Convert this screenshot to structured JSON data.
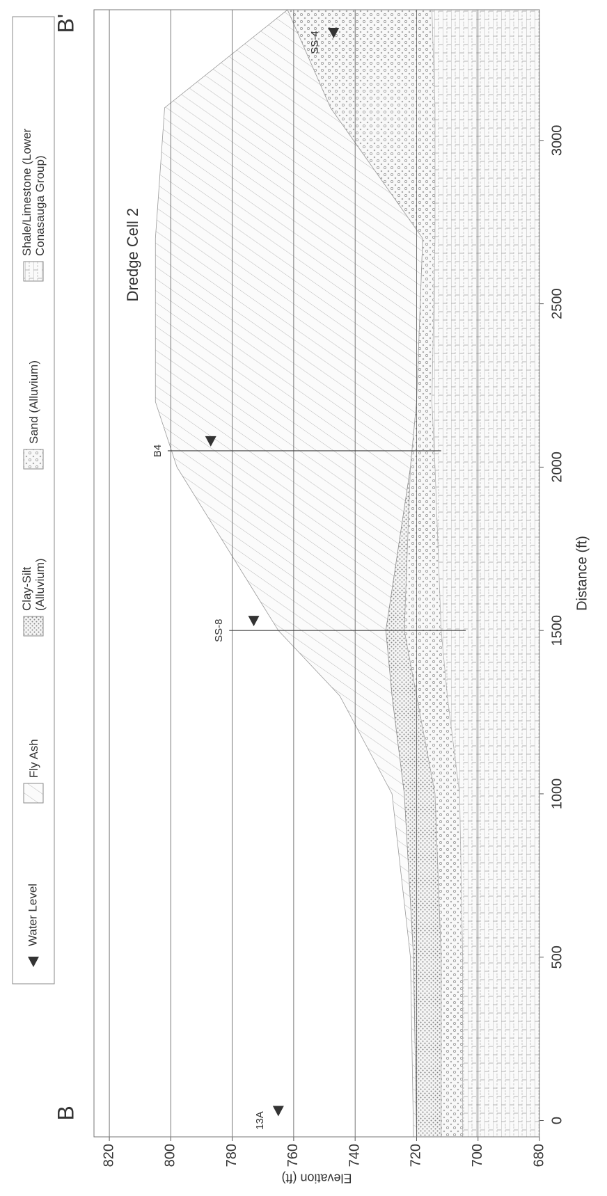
{
  "chart_data": {
    "type": "cross-section",
    "xlabel": "Distance (ft)",
    "ylabel": "Elevation (ft)",
    "xlim": [
      -50,
      3400
    ],
    "xticks": [
      0,
      500,
      1000,
      1500,
      2000,
      2500,
      3000
    ],
    "ylim": [
      680,
      825
    ],
    "yticks": [
      680,
      700,
      720,
      740,
      760,
      780,
      800,
      820
    ],
    "grid": true,
    "annotations": [
      "B",
      "B'",
      "Dredge Cell 2"
    ],
    "water_level_label": "Water Level",
    "x": [
      -50,
      500,
      1000,
      1300,
      1500,
      2000,
      2200,
      2700,
      3100,
      3400
    ],
    "series": [
      {
        "name": "Fly Ash",
        "color": "#9a9a9a",
        "values": [
          721,
          722,
          728,
          745,
          765,
          798,
          805,
          805,
          802,
          762
        ]
      },
      {
        "name": "Clay-Silt (Alluvium)",
        "color": "#8a8a8a",
        "values": [
          720,
          721,
          724,
          728,
          730,
          722,
          720,
          718,
          748,
          762
        ]
      },
      {
        "name": "Sand (Alluvium)",
        "color": "#a0a0a0",
        "values": [
          712,
          712,
          714,
          720,
          724,
          722,
          720,
          718,
          748,
          762
        ]
      },
      {
        "name": "Shale/Limestone (Lower Conasauga Group)",
        "color": "#b0b0b0",
        "values": [
          705,
          705,
          706,
          710,
          712,
          714,
          715,
          714,
          714,
          715
        ]
      }
    ],
    "wells": [
      {
        "label": "13A",
        "x": 0,
        "water_level": 765
      },
      {
        "label": "SS-8",
        "x": 1500,
        "top": 781,
        "bottom": 704,
        "water_level": 773
      },
      {
        "label": "B4",
        "x": 2050,
        "top": 801,
        "bottom": 712,
        "water_level": 787
      },
      {
        "label": "SS-4",
        "x": 3300,
        "water_level": 747
      }
    ]
  }
}
